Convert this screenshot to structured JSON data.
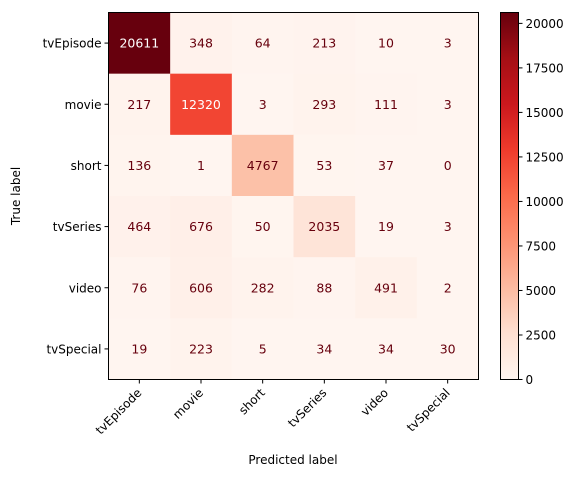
{
  "chart_data": {
    "type": "heatmap",
    "title": "",
    "xlabel": "Predicted label",
    "ylabel": "True label",
    "x_categories": [
      "tvEpisode",
      "movie",
      "short",
      "tvSeries",
      "video",
      "tvSpecial"
    ],
    "y_categories": [
      "tvEpisode",
      "movie",
      "short",
      "tvSeries",
      "video",
      "tvSpecial"
    ],
    "values": [
      [
        20611,
        348,
        64,
        213,
        10,
        3
      ],
      [
        217,
        12320,
        3,
        293,
        111,
        3
      ],
      [
        136,
        1,
        4767,
        53,
        37,
        0
      ],
      [
        464,
        676,
        50,
        2035,
        19,
        3
      ],
      [
        76,
        606,
        282,
        88,
        491,
        2
      ],
      [
        19,
        223,
        5,
        34,
        34,
        30
      ]
    ],
    "colormap": "Reds",
    "colorbar": {
      "range": [
        0,
        20611
      ],
      "ticks": [
        0,
        2500,
        5000,
        7500,
        10000,
        12500,
        15000,
        17500,
        20000
      ]
    },
    "text_colors": {
      "dark": "#67000d",
      "light": "#ffffff"
    }
  }
}
